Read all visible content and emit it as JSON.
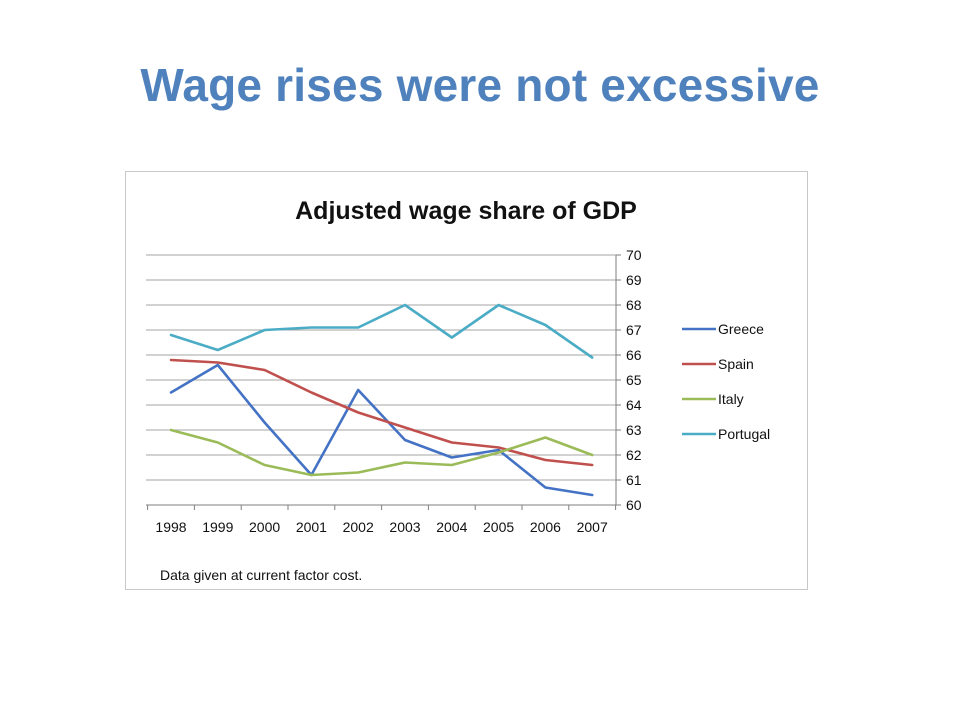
{
  "slide": {
    "title": "Wage rises were not excessive"
  },
  "chart_data": {
    "type": "line",
    "title": "Adjusted wage share of GDP",
    "xlabel": "",
    "ylabel": "",
    "x": [
      "1998",
      "1999",
      "2000",
      "2001",
      "2002",
      "2003",
      "2004",
      "2005",
      "2006",
      "2007"
    ],
    "ylim": [
      60,
      70
    ],
    "yticks": [
      "60",
      "61",
      "62",
      "63",
      "64",
      "65",
      "66",
      "67",
      "68",
      "69",
      "70"
    ],
    "y_axis_side": "right",
    "grid": true,
    "legend_position": "right",
    "series": [
      {
        "name": "Greece",
        "color": "#4472c4",
        "values": [
          64.5,
          65.6,
          63.3,
          61.2,
          64.6,
          62.6,
          61.9,
          62.2,
          60.7,
          60.4
        ]
      },
      {
        "name": "Spain",
        "color": "#c0504d",
        "values": [
          65.8,
          65.7,
          65.4,
          64.5,
          63.7,
          63.1,
          62.5,
          62.3,
          61.8,
          61.6
        ]
      },
      {
        "name": "Italy",
        "color": "#9bbb59",
        "values": [
          63.0,
          62.5,
          61.6,
          61.2,
          61.3,
          61.7,
          61.6,
          62.1,
          62.7,
          62.0
        ]
      },
      {
        "name": "Portugal",
        "color": "#4bacc6",
        "values": [
          66.8,
          66.2,
          67.0,
          67.1,
          67.1,
          68.0,
          66.7,
          68.0,
          67.2,
          65.9
        ]
      }
    ],
    "footnote": "Data given at current factor cost."
  }
}
